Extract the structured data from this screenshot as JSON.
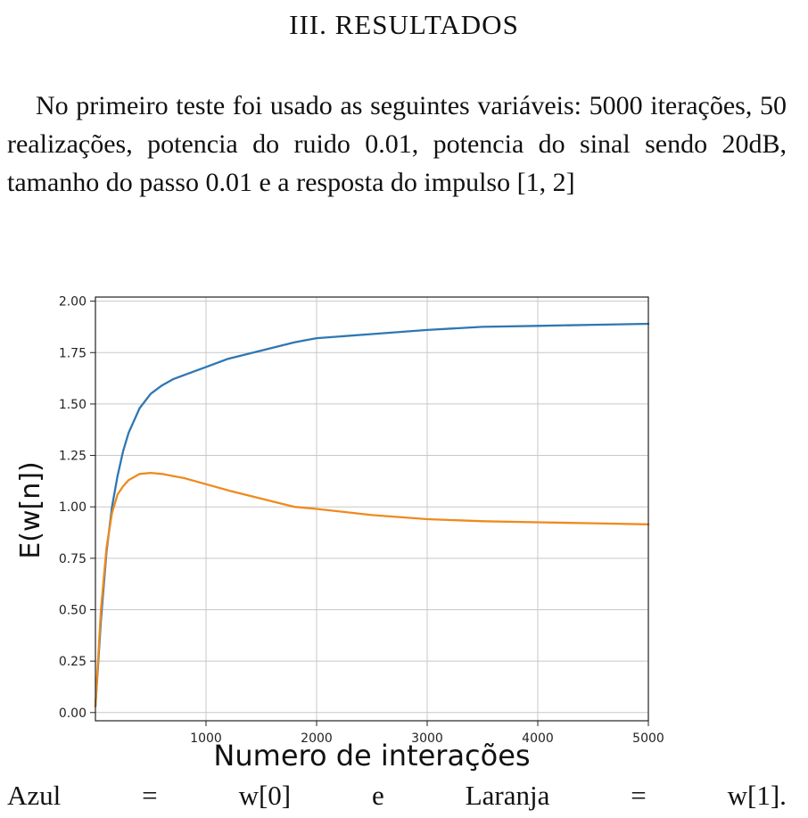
{
  "section_title": "III. RESULTADOS",
  "paragraph": "No primeiro teste foi usado as seguintes variáveis: 5000 iterações, 50 realizações, potencia do ruido 0.01, potencia do sinal sendo 20dB, tamanho do passo 0.01 e a resposta do impulso [1, 2]",
  "caption": {
    "words": [
      "Azul",
      "=",
      "w[0]",
      "e",
      "Laranja",
      "=",
      "w[1]."
    ]
  },
  "chart_data": {
    "type": "line",
    "xlabel": "Numero de interações",
    "ylabel": "E(w[n])",
    "xlim": [
      0,
      5000
    ],
    "ylim": [
      -0.04,
      2.02
    ],
    "xticks": [
      1000,
      2000,
      3000,
      4000,
      5000
    ],
    "yticks": [
      "0.00",
      "0.25",
      "0.50",
      "0.75",
      "1.00",
      "1.25",
      "1.50",
      "1.75",
      "2.00"
    ],
    "grid": true,
    "series": [
      {
        "color": "#2f77b2",
        "x": [
          0,
          50,
          100,
          150,
          200,
          250,
          300,
          400,
          500,
          600,
          700,
          800,
          1000,
          1200,
          1500,
          1800,
          2000,
          2500,
          3000,
          3500,
          4000,
          4500,
          5000
        ],
        "y": [
          0.03,
          0.45,
          0.78,
          1.0,
          1.15,
          1.27,
          1.36,
          1.48,
          1.55,
          1.59,
          1.62,
          1.64,
          1.68,
          1.72,
          1.76,
          1.8,
          1.82,
          1.84,
          1.86,
          1.875,
          1.88,
          1.885,
          1.89
        ]
      },
      {
        "color": "#ef8a1e",
        "x": [
          0,
          50,
          100,
          150,
          200,
          250,
          300,
          400,
          500,
          600,
          700,
          800,
          1000,
          1200,
          1500,
          1800,
          2000,
          2500,
          3000,
          3500,
          4000,
          4500,
          5000
        ],
        "y": [
          0.03,
          0.5,
          0.8,
          0.97,
          1.06,
          1.1,
          1.13,
          1.16,
          1.165,
          1.16,
          1.15,
          1.14,
          1.11,
          1.08,
          1.04,
          1.0,
          0.99,
          0.96,
          0.94,
          0.93,
          0.925,
          0.92,
          0.915
        ]
      }
    ]
  }
}
